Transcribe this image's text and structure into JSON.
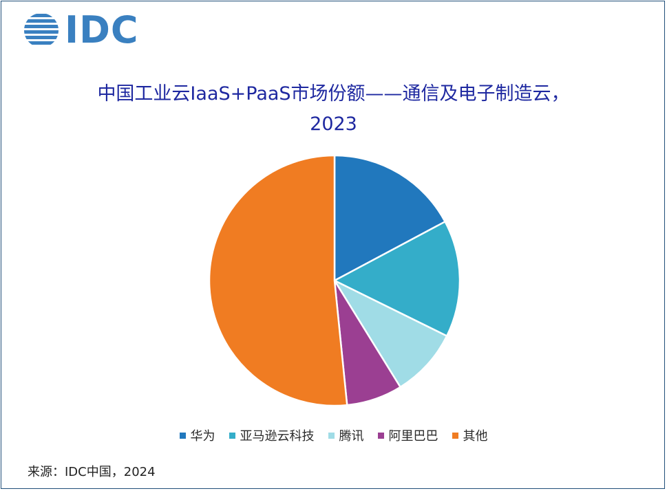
{
  "logo": {
    "text": "IDC"
  },
  "chart_data": {
    "type": "pie",
    "title_line1": "中国工业云IaaS+PaaS市场份额——通信及电子制造云，",
    "title_line2": "2023",
    "categories": [
      "华为",
      "亚马逊云科技",
      "腾讯",
      "阿里巴巴",
      "其他"
    ],
    "values": [
      17.2,
      15.1,
      8.9,
      7.2,
      51.6
    ],
    "colors": [
      "#2178bd",
      "#34adc9",
      "#a0dce6",
      "#9b3f92",
      "#f07c22"
    ],
    "legend_position": "bottom"
  },
  "source": "来源：IDC中国，2024"
}
